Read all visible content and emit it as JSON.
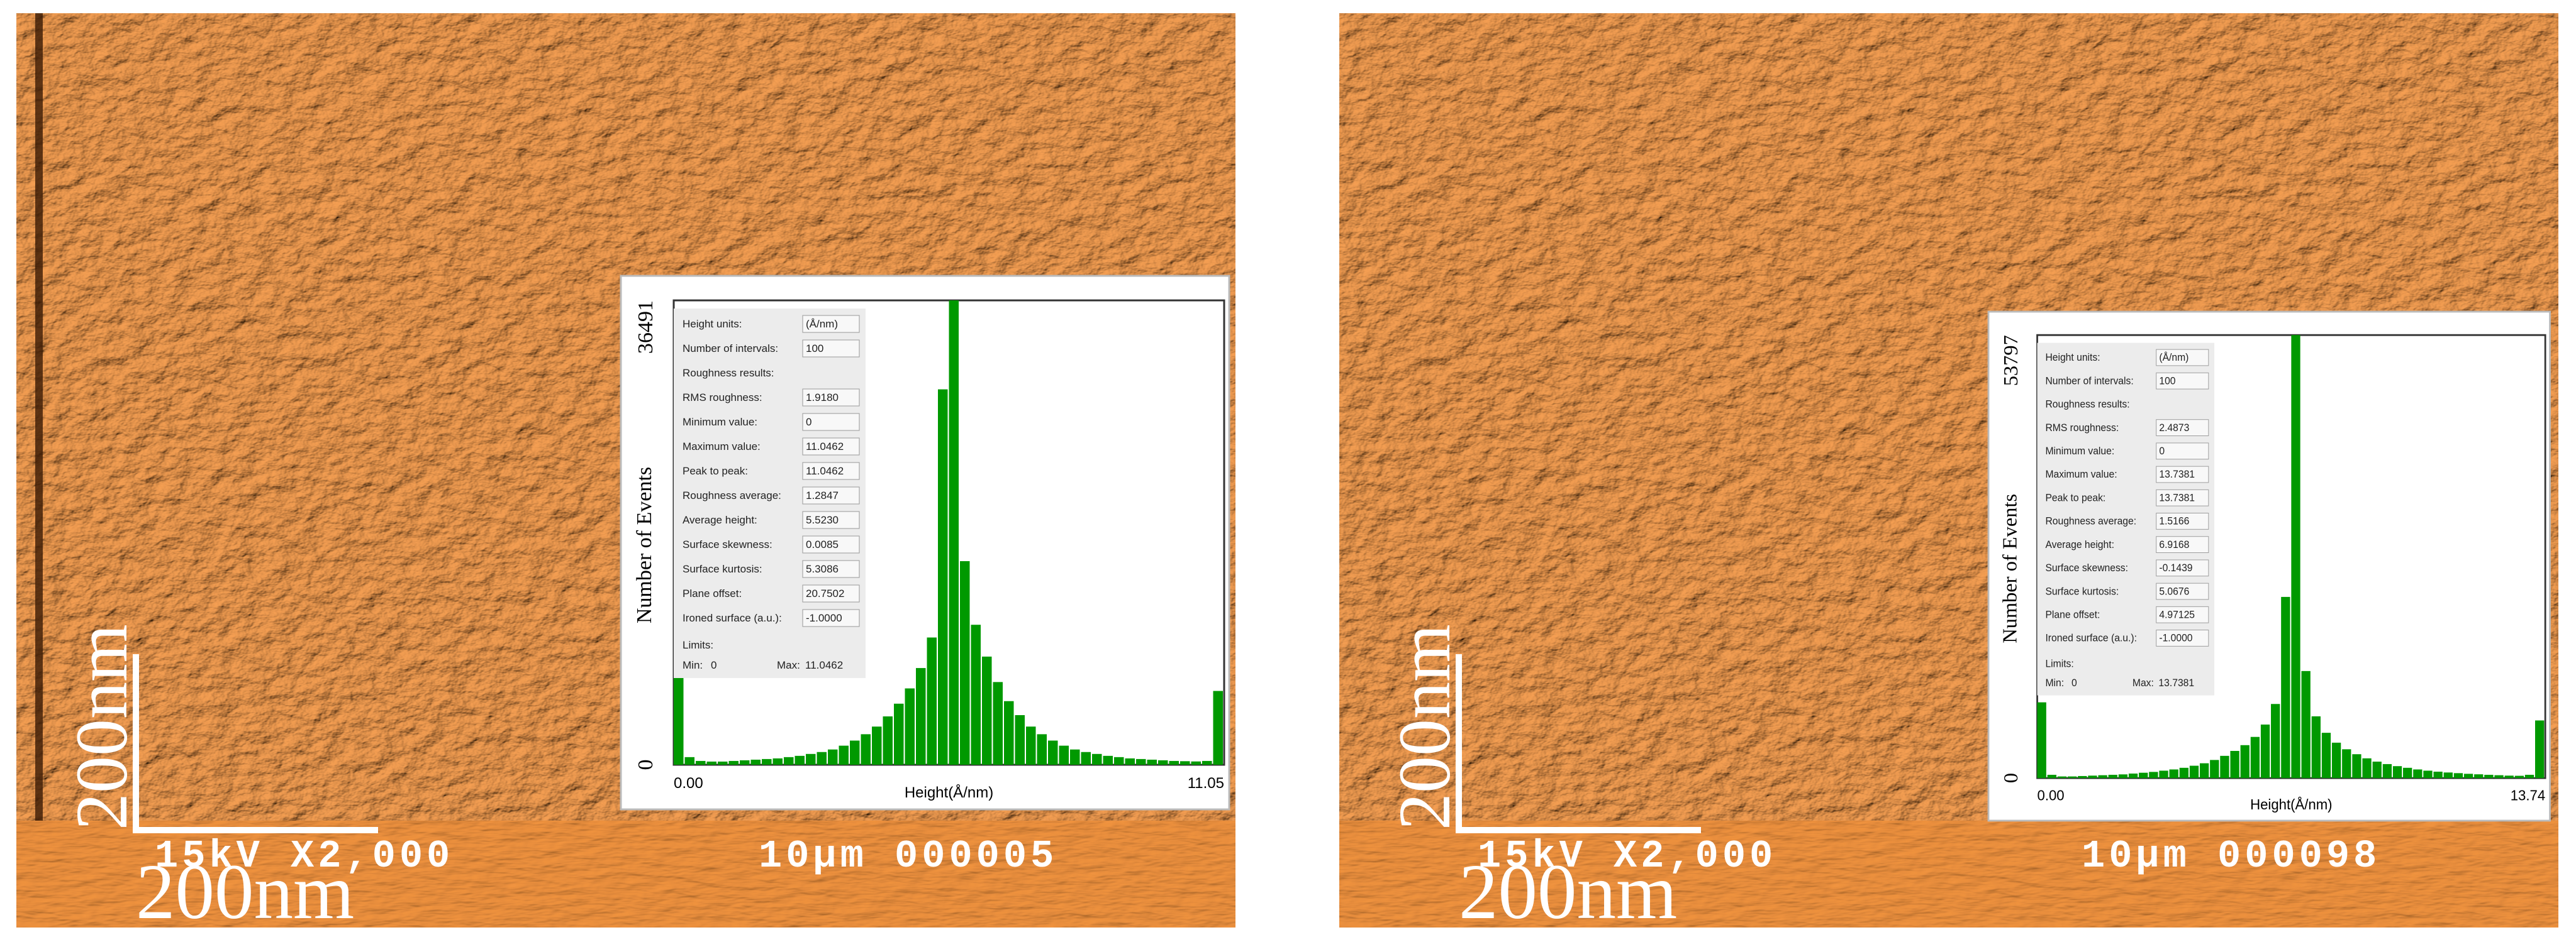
{
  "panels": [
    {
      "scale_bar_vertical": "200nm",
      "scale_bar_horizontal": "200nm",
      "banner_left": "15kV X2,000",
      "banner_right": "10µm 000005",
      "inset": {
        "params": [
          {
            "label": "Height units:",
            "value": "(Å/nm)"
          },
          {
            "label": "Number of intervals:",
            "value": "100"
          }
        ],
        "results_title": "Roughness results:",
        "results": [
          {
            "label": "RMS roughness:",
            "value": "1.9180"
          },
          {
            "label": "Minimum value:",
            "value": "0"
          },
          {
            "label": "Maximum value:",
            "value": "11.0462"
          },
          {
            "label": "Peak to peak:",
            "value": "11.0462"
          },
          {
            "label": "Roughness average:",
            "value": "1.2847"
          },
          {
            "label": "Average height:",
            "value": "5.5230"
          },
          {
            "label": "Surface skewness:",
            "value": "0.0085"
          },
          {
            "label": "Surface kurtosis:",
            "value": "5.3086"
          },
          {
            "label": "Plane offset:",
            "value": "20.7502"
          },
          {
            "label": "Ironed surface (a.u.):",
            "value": "-1.0000"
          }
        ],
        "limits_title": "Limits:",
        "limits": [
          {
            "label": "Min:",
            "value": "0"
          },
          {
            "label": "Max:",
            "value": "11.0462"
          }
        ],
        "histogram": {
          "x_label": "Height(Å/nm)",
          "y_label": "Number of Events",
          "color": "#009900",
          "xlim": [
            0,
            11.05
          ],
          "xticks": [
            {
              "value": 0,
              "label": "0.00"
            },
            11.05
          ],
          "ylim": [
            0,
            36491
          ],
          "yticks": [
            0,
            36491
          ],
          "counts": [
            7300,
            600,
            300,
            250,
            250,
            300,
            350,
            400,
            450,
            500,
            600,
            700,
            850,
            1000,
            1200,
            1500,
            1900,
            2400,
            3000,
            3800,
            4800,
            6000,
            7600,
            10000,
            29500,
            36491,
            16000,
            11000,
            8500,
            6500,
            5000,
            3900,
            3000,
            2400,
            1900,
            1500,
            1200,
            1000,
            850,
            700,
            600,
            500,
            450,
            400,
            350,
            300,
            280,
            260,
            300,
            5800
          ]
        }
      }
    },
    {
      "scale_bar_vertical": "200nm",
      "scale_bar_horizontal": "200nm",
      "banner_left": "15kV X2,000",
      "banner_right": "10µm 000098",
      "inset": {
        "params": [
          {
            "label": "Height units:",
            "value": "(Å/nm)"
          },
          {
            "label": "Number of intervals:",
            "value": "100"
          }
        ],
        "results_title": "Roughness results:",
        "results": [
          {
            "label": "RMS roughness:",
            "value": "2.4873"
          },
          {
            "label": "Minimum value:",
            "value": "0"
          },
          {
            "label": "Maximum value:",
            "value": "13.7381"
          },
          {
            "label": "Peak to peak:",
            "value": "13.7381"
          },
          {
            "label": "Roughness average:",
            "value": "1.5166"
          },
          {
            "label": "Average height:",
            "value": "6.9168"
          },
          {
            "label": "Surface skewness:",
            "value": "-0.1439"
          },
          {
            "label": "Surface kurtosis:",
            "value": "5.0676"
          },
          {
            "label": "Plane offset:",
            "value": "4.97125"
          },
          {
            "label": "Ironed surface (a.u.):",
            "value": "-1.0000"
          }
        ],
        "limits_title": "Limits:",
        "limits": [
          {
            "label": "Min:",
            "value": "0"
          },
          {
            "label": "Max:",
            "value": "13.7381"
          }
        ],
        "histogram": {
          "x_label": "Height(Å/nm)",
          "y_label": "Number of Events",
          "color": "#009900",
          "xlim": [
            0,
            13.74
          ],
          "xticks": [
            {
              "value": 0,
              "label": "0.00"
            },
            13.74
          ],
          "ylim": [
            0,
            53797
          ],
          "yticks": [
            0,
            53797
          ],
          "counts": [
            9200,
            400,
            200,
            200,
            250,
            300,
            350,
            400,
            450,
            550,
            650,
            750,
            900,
            1050,
            1250,
            1500,
            1800,
            2200,
            2700,
            3300,
            4000,
            5000,
            6500,
            9000,
            22000,
            53797,
            13000,
            7500,
            5500,
            4300,
            3500,
            2900,
            2400,
            2000,
            1700,
            1450,
            1250,
            1050,
            900,
            780,
            680,
            600,
            520,
            460,
            400,
            350,
            300,
            280,
            400,
            7000
          ]
        }
      }
    }
  ]
}
